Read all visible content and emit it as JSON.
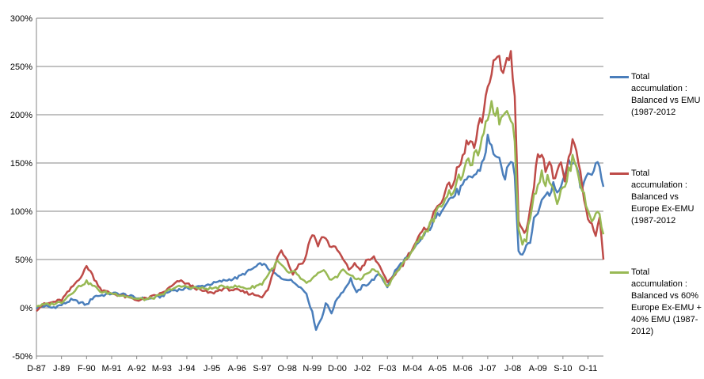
{
  "chart_data": {
    "type": "line",
    "title": "",
    "xlabel": "",
    "ylabel": "",
    "ylim": [
      -50,
      300
    ],
    "yticks": [
      -50,
      0,
      50,
      100,
      150,
      200,
      250,
      300
    ],
    "ytick_labels": [
      "-50%",
      "0%",
      "50%",
      "100%",
      "150%",
      "200%",
      "250%",
      "300%"
    ],
    "x_tick_labels": [
      "D-87",
      "J-89",
      "F-90",
      "M-91",
      "A-92",
      "M-93",
      "J-94",
      "J-95",
      "A-96",
      "S-97",
      "O-98",
      "N-99",
      "D-00",
      "J-02",
      "F-03",
      "M-04",
      "A-05",
      "M-06",
      "J-07",
      "J-08",
      "A-09",
      "S-10",
      "O-11"
    ],
    "x_tick_positions": [
      0,
      13,
      26,
      39,
      52,
      65,
      78,
      91,
      104,
      117,
      130,
      143,
      156,
      169,
      182,
      195,
      208,
      221,
      234,
      247,
      260,
      273,
      286
    ],
    "n_points": 295,
    "grid": "horizontal",
    "legend_position": "right",
    "colors": [
      "#4a7ebb",
      "#be4b48",
      "#98b954"
    ],
    "series": [
      {
        "name": "Total accumulation : Balanced vs EMU (1987-2012",
        "color": "#4a7ebb",
        "anchors": [
          [
            0,
            0
          ],
          [
            4,
            2
          ],
          [
            8,
            0
          ],
          [
            13,
            3
          ],
          [
            18,
            8
          ],
          [
            22,
            6
          ],
          [
            26,
            3
          ],
          [
            30,
            12
          ],
          [
            34,
            13
          ],
          [
            39,
            15
          ],
          [
            45,
            14
          ],
          [
            52,
            10
          ],
          [
            58,
            9
          ],
          [
            65,
            12
          ],
          [
            70,
            18
          ],
          [
            75,
            19
          ],
          [
            78,
            20
          ],
          [
            85,
            22
          ],
          [
            91,
            25
          ],
          [
            97,
            28
          ],
          [
            104,
            31
          ],
          [
            110,
            38
          ],
          [
            117,
            46
          ],
          [
            122,
            38
          ],
          [
            127,
            30
          ],
          [
            130,
            30
          ],
          [
            135,
            25
          ],
          [
            140,
            15
          ],
          [
            143,
            -5
          ],
          [
            145,
            -22
          ],
          [
            148,
            -10
          ],
          [
            150,
            5
          ],
          [
            153,
            -5
          ],
          [
            156,
            10
          ],
          [
            160,
            20
          ],
          [
            163,
            30
          ],
          [
            166,
            15
          ],
          [
            169,
            22
          ],
          [
            172,
            25
          ],
          [
            175,
            30
          ],
          [
            178,
            35
          ],
          [
            182,
            22
          ],
          [
            186,
            38
          ],
          [
            190,
            48
          ],
          [
            195,
            58
          ],
          [
            199,
            70
          ],
          [
            203,
            80
          ],
          [
            208,
            95
          ],
          [
            212,
            110
          ],
          [
            216,
            115
          ],
          [
            221,
            125
          ],
          [
            225,
            135
          ],
          [
            229,
            140
          ],
          [
            232,
            155
          ],
          [
            234,
            175
          ],
          [
            236,
            165
          ],
          [
            238,
            160
          ],
          [
            240,
            150
          ],
          [
            242,
            135
          ],
          [
            244,
            140
          ],
          [
            246,
            155
          ],
          [
            248,
            140
          ],
          [
            250,
            60
          ],
          [
            252,
            55
          ],
          [
            254,
            65
          ],
          [
            256,
            70
          ],
          [
            258,
            90
          ],
          [
            260,
            100
          ],
          [
            262,
            110
          ],
          [
            264,
            120
          ],
          [
            266,
            115
          ],
          [
            268,
            130
          ],
          [
            270,
            120
          ],
          [
            272,
            130
          ],
          [
            274,
            140
          ],
          [
            276,
            150
          ],
          [
            278,
            155
          ],
          [
            280,
            145
          ],
          [
            282,
            125
          ],
          [
            284,
            130
          ],
          [
            286,
            135
          ],
          [
            288,
            140
          ],
          [
            290,
            148
          ],
          [
            292,
            145
          ],
          [
            294,
            128
          ]
        ]
      },
      {
        "name": "Total accumulation : Balanced vs Europe Ex-EMU (1987-2012",
        "color": "#be4b48",
        "anchors": [
          [
            0,
            -2
          ],
          [
            3,
            3
          ],
          [
            7,
            5
          ],
          [
            13,
            8
          ],
          [
            18,
            20
          ],
          [
            22,
            30
          ],
          [
            24,
            35
          ],
          [
            26,
            43
          ],
          [
            28,
            38
          ],
          [
            30,
            30
          ],
          [
            34,
            18
          ],
          [
            39,
            15
          ],
          [
            45,
            12
          ],
          [
            52,
            8
          ],
          [
            58,
            10
          ],
          [
            65,
            15
          ],
          [
            70,
            22
          ],
          [
            74,
            28
          ],
          [
            78,
            25
          ],
          [
            85,
            18
          ],
          [
            91,
            15
          ],
          [
            97,
            20
          ],
          [
            104,
            18
          ],
          [
            110,
            15
          ],
          [
            117,
            12
          ],
          [
            120,
            18
          ],
          [
            125,
            52
          ],
          [
            127,
            60
          ],
          [
            130,
            50
          ],
          [
            133,
            35
          ],
          [
            136,
            45
          ],
          [
            139,
            48
          ],
          [
            141,
            65
          ],
          [
            143,
            78
          ],
          [
            146,
            65
          ],
          [
            149,
            75
          ],
          [
            152,
            65
          ],
          [
            156,
            60
          ],
          [
            159,
            50
          ],
          [
            162,
            40
          ],
          [
            165,
            45
          ],
          [
            168,
            40
          ],
          [
            171,
            48
          ],
          [
            175,
            52
          ],
          [
            179,
            40
          ],
          [
            182,
            25
          ],
          [
            186,
            35
          ],
          [
            190,
            45
          ],
          [
            195,
            62
          ],
          [
            199,
            75
          ],
          [
            203,
            85
          ],
          [
            208,
            105
          ],
          [
            212,
            120
          ],
          [
            216,
            130
          ],
          [
            221,
            155
          ],
          [
            224,
            175
          ],
          [
            227,
            165
          ],
          [
            230,
            190
          ],
          [
            232,
            200
          ],
          [
            234,
            225
          ],
          [
            236,
            250
          ],
          [
            238,
            260
          ],
          [
            240,
            255
          ],
          [
            242,
            240
          ],
          [
            244,
            260
          ],
          [
            246,
            262
          ],
          [
            248,
            225
          ],
          [
            250,
            90
          ],
          [
            252,
            80
          ],
          [
            254,
            78
          ],
          [
            256,
            105
          ],
          [
            258,
            130
          ],
          [
            260,
            155
          ],
          [
            262,
            165
          ],
          [
            264,
            145
          ],
          [
            266,
            150
          ],
          [
            268,
            135
          ],
          [
            270,
            140
          ],
          [
            272,
            145
          ],
          [
            274,
            130
          ],
          [
            276,
            155
          ],
          [
            278,
            170
          ],
          [
            280,
            160
          ],
          [
            282,
            145
          ],
          [
            284,
            110
          ],
          [
            286,
            95
          ],
          [
            288,
            85
          ],
          [
            290,
            75
          ],
          [
            292,
            90
          ],
          [
            294,
            52
          ]
        ]
      },
      {
        "name": "Total accumulation : Balanced vs 60% Europe Ex-EMU + 40% EMU (1987-2012)",
        "color": "#98b954",
        "anchors": [
          [
            0,
            2
          ],
          [
            4,
            3
          ],
          [
            8,
            4
          ],
          [
            13,
            6
          ],
          [
            18,
            15
          ],
          [
            22,
            22
          ],
          [
            26,
            27
          ],
          [
            30,
            22
          ],
          [
            34,
            16
          ],
          [
            39,
            15
          ],
          [
            45,
            13
          ],
          [
            52,
            9
          ],
          [
            58,
            9
          ],
          [
            65,
            13
          ],
          [
            70,
            20
          ],
          [
            75,
            22
          ],
          [
            78,
            22
          ],
          [
            85,
            20
          ],
          [
            91,
            20
          ],
          [
            97,
            22
          ],
          [
            104,
            22
          ],
          [
            110,
            20
          ],
          [
            117,
            25
          ],
          [
            122,
            40
          ],
          [
            125,
            48
          ],
          [
            128,
            42
          ],
          [
            131,
            35
          ],
          [
            134,
            38
          ],
          [
            137,
            30
          ],
          [
            140,
            25
          ],
          [
            143,
            30
          ],
          [
            146,
            35
          ],
          [
            149,
            38
          ],
          [
            152,
            30
          ],
          [
            156,
            32
          ],
          [
            159,
            40
          ],
          [
            162,
            35
          ],
          [
            165,
            30
          ],
          [
            168,
            30
          ],
          [
            171,
            35
          ],
          [
            175,
            40
          ],
          [
            179,
            33
          ],
          [
            182,
            22
          ],
          [
            186,
            35
          ],
          [
            190,
            45
          ],
          [
            195,
            60
          ],
          [
            199,
            72
          ],
          [
            203,
            82
          ],
          [
            208,
            100
          ],
          [
            212,
            115
          ],
          [
            216,
            122
          ],
          [
            221,
            140
          ],
          [
            224,
            150
          ],
          [
            227,
            155
          ],
          [
            230,
            165
          ],
          [
            232,
            175
          ],
          [
            234,
            200
          ],
          [
            236,
            212
          ],
          [
            238,
            205
          ],
          [
            240,
            195
          ],
          [
            242,
            200
          ],
          [
            244,
            210
          ],
          [
            246,
            200
          ],
          [
            248,
            175
          ],
          [
            250,
            80
          ],
          [
            252,
            68
          ],
          [
            254,
            70
          ],
          [
            256,
            95
          ],
          [
            258,
            115
          ],
          [
            260,
            130
          ],
          [
            262,
            140
          ],
          [
            264,
            130
          ],
          [
            266,
            135
          ],
          [
            268,
            125
          ],
          [
            270,
            110
          ],
          [
            272,
            120
          ],
          [
            274,
            125
          ],
          [
            276,
            140
          ],
          [
            278,
            155
          ],
          [
            280,
            150
          ],
          [
            282,
            130
          ],
          [
            284,
            115
          ],
          [
            286,
            100
          ],
          [
            288,
            90
          ],
          [
            290,
            100
          ],
          [
            292,
            95
          ],
          [
            294,
            75
          ]
        ]
      }
    ]
  }
}
